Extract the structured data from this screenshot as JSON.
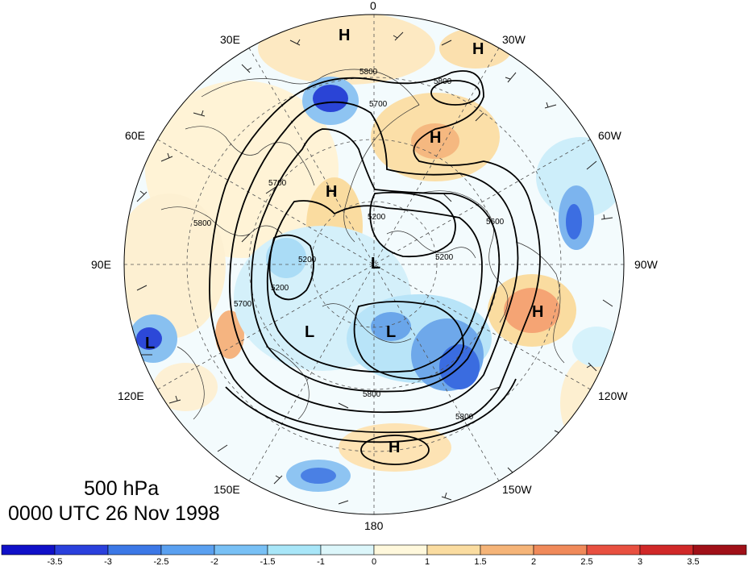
{
  "map": {
    "level_label": "500 hPa",
    "time_label": "0000 UTC 26 Nov 1998",
    "longitude_labels": [
      "0",
      "30W",
      "60W",
      "90W",
      "120W",
      "150W",
      "180",
      "150E",
      "120E",
      "90E",
      "60E",
      "30E"
    ],
    "contour_labels": [
      "5800",
      "5800",
      "5700",
      "5200",
      "5200",
      "5800",
      "5700",
      "5200",
      "5800",
      "5700",
      "5200",
      "5600",
      "5800"
    ],
    "pressure_centers": [
      {
        "type": "H",
        "label": "H"
      },
      {
        "type": "H",
        "label": "H"
      },
      {
        "type": "H",
        "label": "H"
      },
      {
        "type": "H",
        "label": "H"
      },
      {
        "type": "H",
        "label": "H"
      },
      {
        "type": "H",
        "label": "H"
      },
      {
        "type": "L",
        "label": "L"
      },
      {
        "type": "L",
        "label": "L"
      },
      {
        "type": "L",
        "label": "L"
      },
      {
        "type": "L",
        "label": "L"
      }
    ]
  },
  "colorbar": {
    "tick_labels": [
      "-3.5",
      "-3",
      "-2.5",
      "-2",
      "-1.5",
      "-1",
      "0",
      "1",
      "1.5",
      "2",
      "2.5",
      "3",
      "3.5"
    ],
    "colors": [
      "#1010c8",
      "#2a40dc",
      "#3c78e6",
      "#5aa0f0",
      "#78c0f5",
      "#a8e6f8",
      "#dcf6fa",
      "#fff8dc",
      "#fadca0",
      "#f5b478",
      "#f08a5a",
      "#e85040",
      "#d02828",
      "#a01018"
    ]
  }
}
